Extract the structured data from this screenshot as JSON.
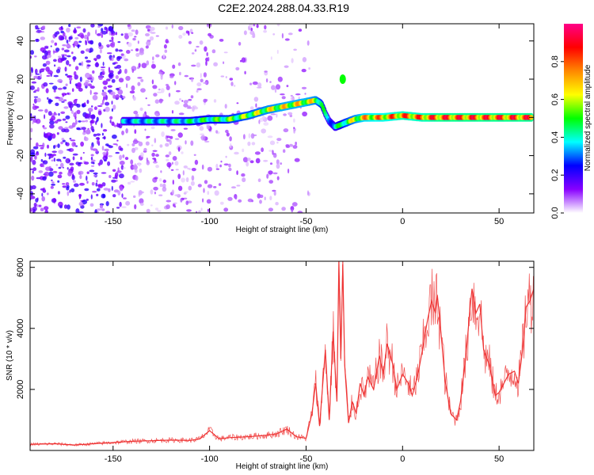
{
  "title": "C2E2.2024.288.04.33.R19",
  "chart_data": [
    {
      "type": "heatmap",
      "xlabel": "Height of straight line (km)",
      "ylabel": "Frequency (Hz)",
      "xlim": [
        -193,
        68
      ],
      "ylim": [
        -50,
        49
      ],
      "xticks": [
        -150,
        -100,
        -50,
        0,
        50
      ],
      "yticks": [
        -40,
        -20,
        0,
        20,
        40
      ],
      "colorbar": {
        "label": "Normalized spectral amplitude",
        "range": [
          0,
          1
        ],
        "ticks": [
          0.0,
          0.2,
          0.4,
          0.6,
          0.8
        ],
        "colormap": [
          "#ffffff",
          "#8800ff",
          "#0000ff",
          "#00ffff",
          "#00ff00",
          "#ffff00",
          "#ff8800",
          "#ff0000",
          "#ff0088"
        ]
      },
      "ridge": {
        "x": [
          -145,
          -135,
          -120,
          -110,
          -100,
          -90,
          -80,
          -70,
          -60,
          -50,
          -45,
          -42,
          -40,
          -38,
          -35,
          -30,
          -25,
          -20,
          -10,
          0,
          10,
          20,
          30,
          40,
          50,
          60,
          67
        ],
        "freq": [
          -2,
          -2,
          -2,
          -2,
          -1,
          -1,
          1,
          4,
          6,
          8,
          9,
          7,
          2,
          -2,
          -5,
          -3,
          -1,
          0,
          0,
          1,
          0,
          0,
          0,
          0,
          0,
          0,
          0
        ],
        "amplitude": [
          0.4,
          0.45,
          0.45,
          0.5,
          0.55,
          0.6,
          0.65,
          0.7,
          0.75,
          0.75,
          0.7,
          0.6,
          0.45,
          0.4,
          0.45,
          0.6,
          0.7,
          0.8,
          0.85,
          0.9,
          0.9,
          0.95,
          0.95,
          0.95,
          0.95,
          0.95,
          0.95
        ]
      },
      "feature": {
        "x": -31,
        "freq": 20,
        "amplitude": 0.5
      }
    },
    {
      "type": "line",
      "xlabel": "Height of straight line (km)",
      "ylabel": "SNR (10 * v/v)",
      "xlim": [
        -193,
        68
      ],
      "ylim": [
        0,
        6200
      ],
      "xticks": [
        -150,
        -100,
        -50,
        0,
        50
      ],
      "yticks": [
        2000,
        4000,
        6000
      ],
      "color": "#ee3333",
      "series": [
        {
          "x": [
            -193,
            -180,
            -170,
            -160,
            -150,
            -140,
            -130,
            -120,
            -110,
            -105,
            -100,
            -95,
            -90,
            -80,
            -70,
            -65,
            -60,
            -55,
            -50,
            -47,
            -45,
            -43,
            -40,
            -38,
            -36,
            -34,
            -33,
            -32,
            -31,
            -30,
            -28,
            -26,
            -24,
            -22,
            -20,
            -18,
            -15,
            -12,
            -10,
            -8,
            -5,
            -3,
            0,
            3,
            5,
            8,
            10,
            13,
            15,
            17,
            18,
            20,
            22,
            25,
            28,
            30,
            33,
            35,
            36,
            38,
            40,
            42,
            45,
            48,
            50,
            55,
            58,
            60,
            62,
            64,
            66,
            68
          ],
          "y": [
            200,
            220,
            180,
            220,
            260,
            300,
            320,
            340,
            330,
            380,
            650,
            380,
            420,
            450,
            500,
            550,
            700,
            450,
            400,
            1200,
            2200,
            800,
            3300,
            1000,
            3900,
            1600,
            6200,
            3000,
            6100,
            2800,
            900,
            1600,
            1200,
            2200,
            1800,
            2400,
            2000,
            3100,
            2500,
            3500,
            2800,
            2000,
            2500,
            2200,
            1800,
            2500,
            3200,
            4300,
            4900,
            4500,
            5100,
            3800,
            2300,
            1200,
            1000,
            1600,
            3200,
            4700,
            5300,
            4500,
            4800,
            3300,
            2800,
            1800,
            1900,
            2500,
            2600,
            2200,
            3200,
            4700,
            4900,
            5300
          ]
        }
      ]
    }
  ]
}
